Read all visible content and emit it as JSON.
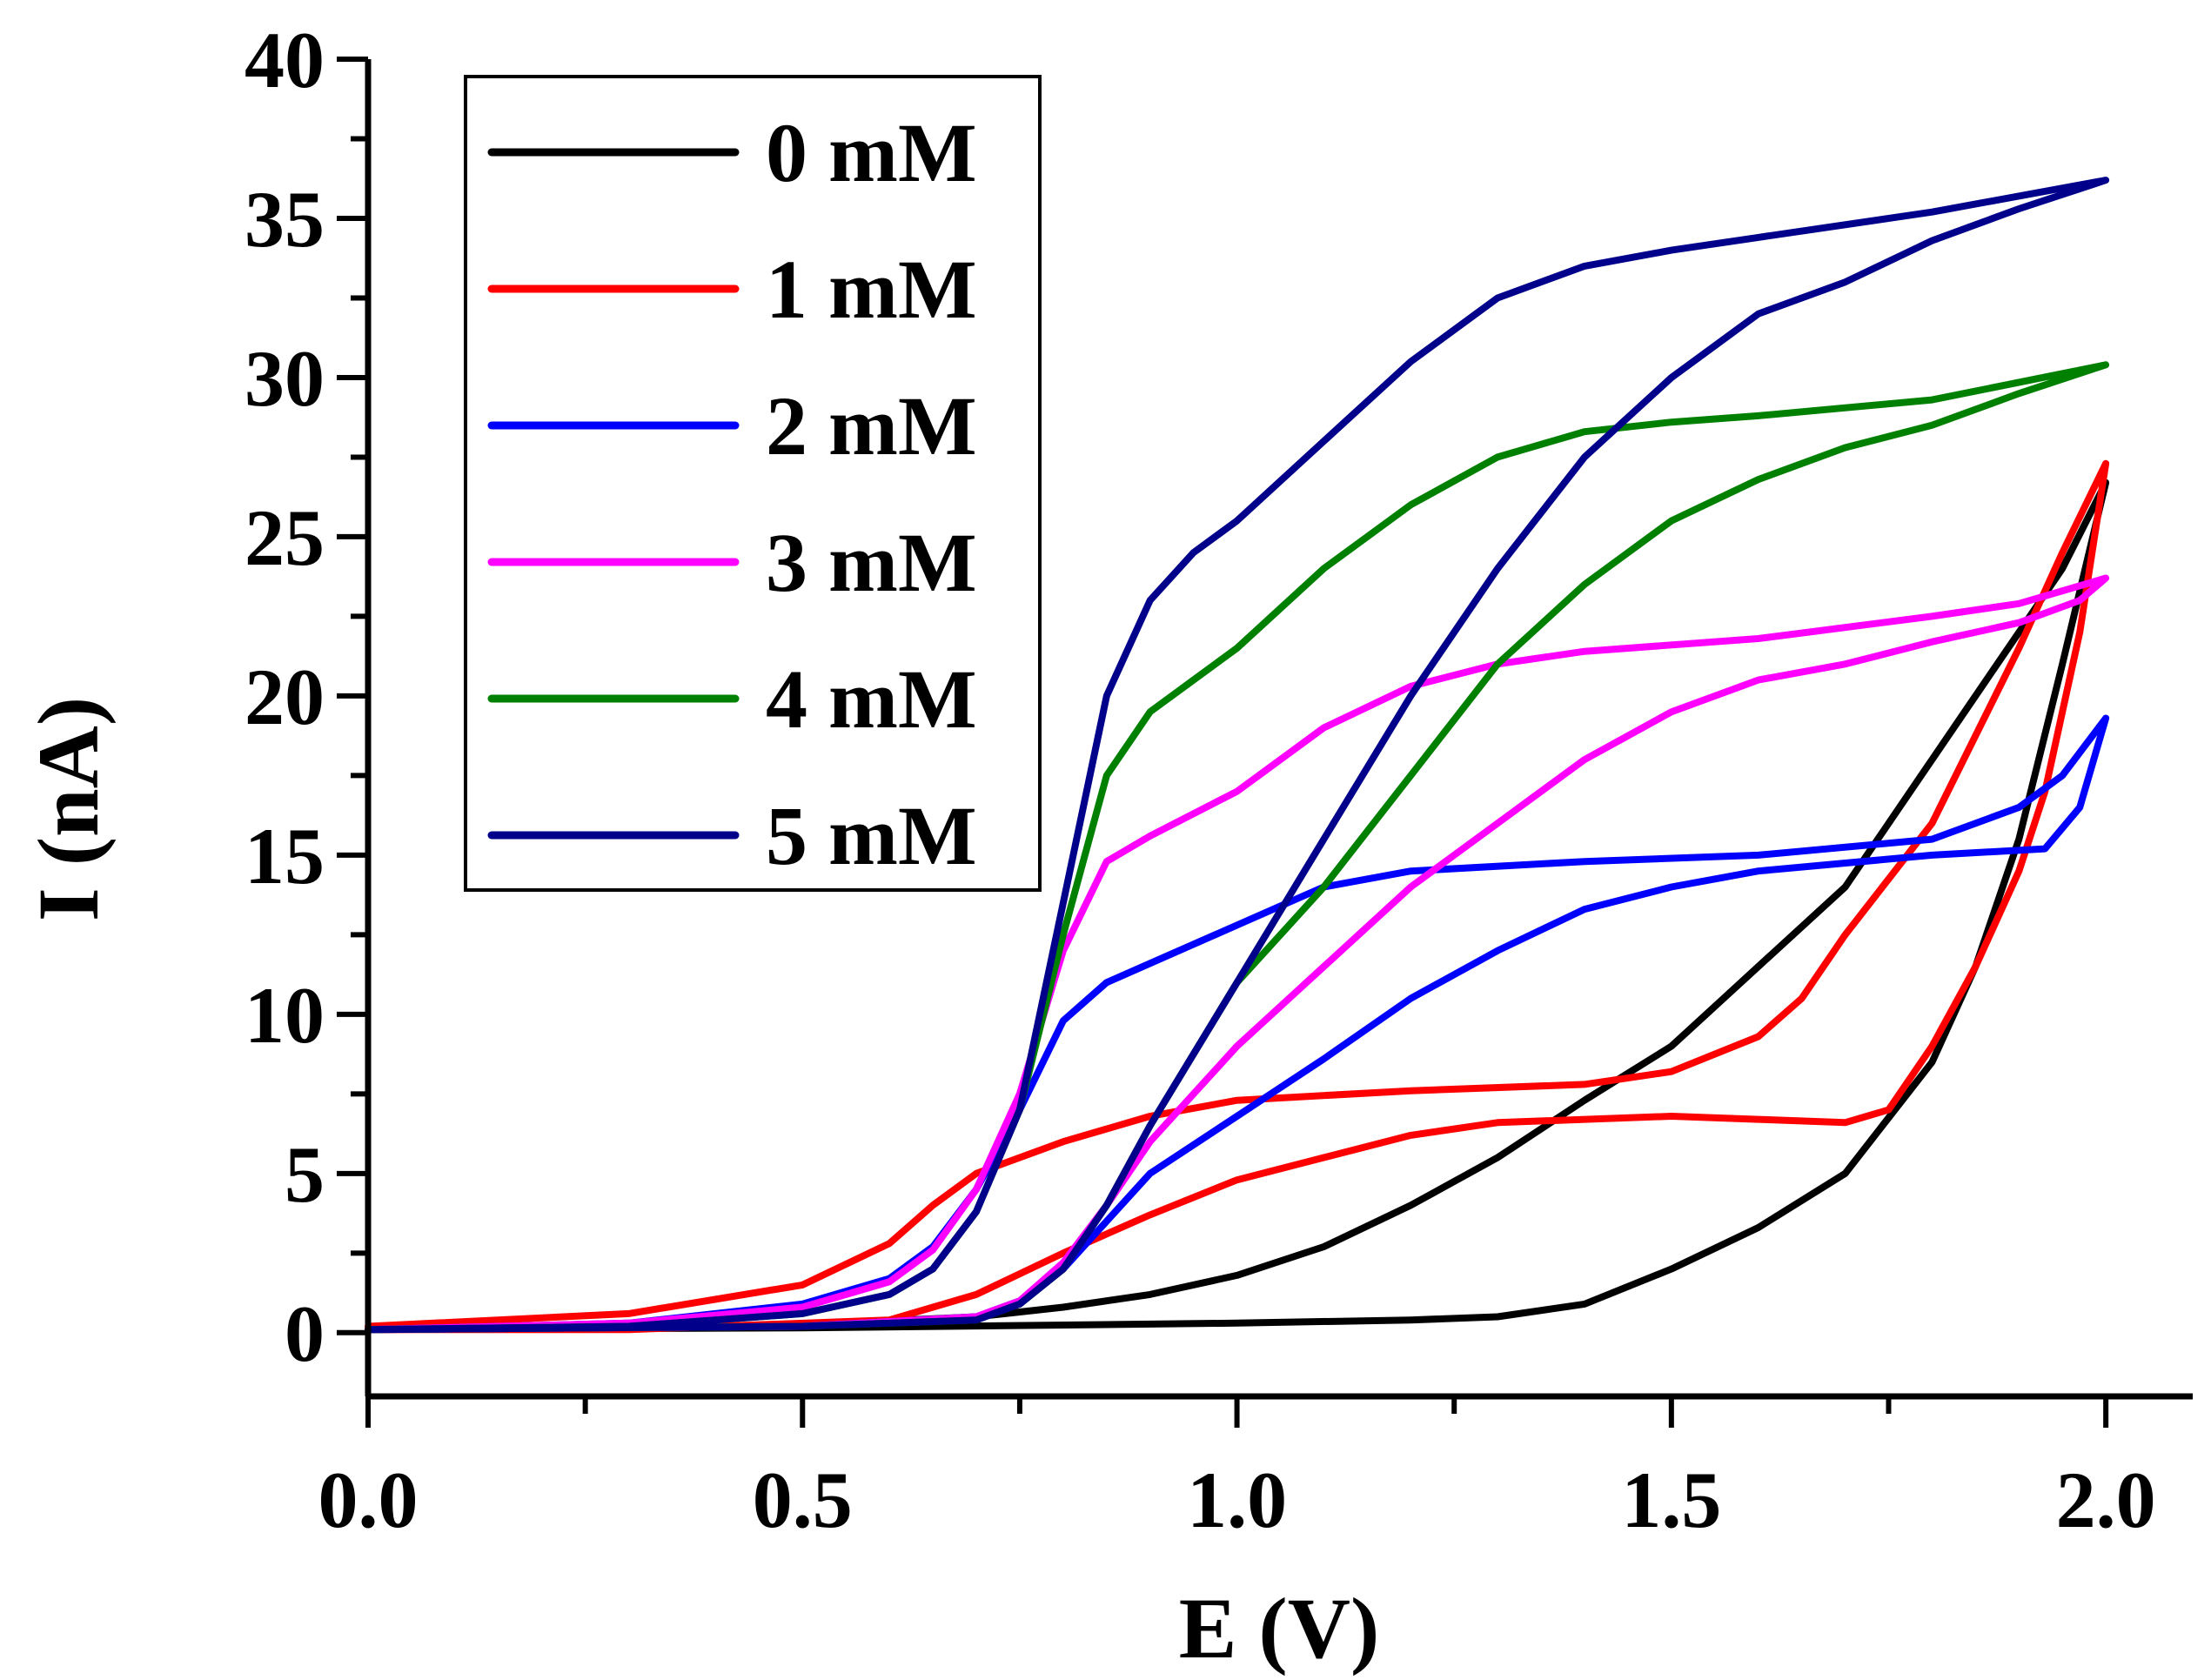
{
  "chart_data": {
    "type": "line",
    "title": "",
    "xlabel": "E (V)",
    "ylabel": "I (nA)",
    "xlim": [
      0.0,
      2.1
    ],
    "ylim": [
      -2,
      40
    ],
    "x_ticks": [
      0.0,
      0.5,
      1.0,
      1.5,
      2.0
    ],
    "x_tick_labels": [
      "0.0",
      "0.5",
      "1.0",
      "1.5",
      "2.0"
    ],
    "y_ticks": [
      0,
      5,
      10,
      15,
      20,
      25,
      30,
      35,
      40
    ],
    "y_tick_labels": [
      "0",
      "5",
      "10",
      "15",
      "20",
      "25",
      "30",
      "35",
      "40"
    ],
    "legend_position": "top-left",
    "grid": false,
    "series": [
      {
        "name": "0 mM",
        "color": "#000000",
        "forward": [
          [
            0.0,
            0.1
          ],
          [
            0.5,
            0.15
          ],
          [
            1.0,
            0.3
          ],
          [
            1.2,
            0.4
          ],
          [
            1.3,
            0.5
          ],
          [
            1.4,
            0.9
          ],
          [
            1.5,
            2.0
          ],
          [
            1.6,
            3.3
          ],
          [
            1.7,
            5.0
          ],
          [
            1.8,
            8.5
          ],
          [
            1.85,
            11.5
          ],
          [
            1.9,
            15.5
          ],
          [
            1.95,
            21.0
          ],
          [
            2.0,
            26.7
          ]
        ],
        "reverse": [
          [
            2.0,
            26.7
          ],
          [
            1.95,
            24.0
          ],
          [
            1.9,
            22.0
          ],
          [
            1.8,
            18.0
          ],
          [
            1.7,
            14.0
          ],
          [
            1.6,
            11.5
          ],
          [
            1.5,
            9.0
          ],
          [
            1.4,
            7.3
          ],
          [
            1.3,
            5.5
          ],
          [
            1.2,
            4.0
          ],
          [
            1.1,
            2.7
          ],
          [
            1.0,
            1.8
          ],
          [
            0.9,
            1.2
          ],
          [
            0.8,
            0.8
          ],
          [
            0.7,
            0.5
          ],
          [
            0.5,
            0.25
          ],
          [
            0.3,
            0.15
          ],
          [
            0.0,
            0.1
          ]
        ]
      },
      {
        "name": "1 mM",
        "color": "#ff0000",
        "forward": [
          [
            0.0,
            0.2
          ],
          [
            0.3,
            0.6
          ],
          [
            0.5,
            1.5
          ],
          [
            0.6,
            2.8
          ],
          [
            0.65,
            4.0
          ],
          [
            0.7,
            5.0
          ],
          [
            0.8,
            6.0
          ],
          [
            0.9,
            6.8
          ],
          [
            1.0,
            7.3
          ],
          [
            1.2,
            7.6
          ],
          [
            1.4,
            7.8
          ],
          [
            1.5,
            8.2
          ],
          [
            1.6,
            9.3
          ],
          [
            1.65,
            10.5
          ],
          [
            1.7,
            12.5
          ],
          [
            1.8,
            16.0
          ],
          [
            1.9,
            21.5
          ],
          [
            1.95,
            24.5
          ],
          [
            2.0,
            27.3
          ]
        ],
        "reverse": [
          [
            2.0,
            27.3
          ],
          [
            1.97,
            22.0
          ],
          [
            1.93,
            17.0
          ],
          [
            1.9,
            14.5
          ],
          [
            1.85,
            11.5
          ],
          [
            1.8,
            9.0
          ],
          [
            1.75,
            7.0
          ],
          [
            1.7,
            6.6
          ],
          [
            1.6,
            6.7
          ],
          [
            1.5,
            6.8
          ],
          [
            1.3,
            6.6
          ],
          [
            1.2,
            6.2
          ],
          [
            1.1,
            5.5
          ],
          [
            1.0,
            4.8
          ],
          [
            0.9,
            3.7
          ],
          [
            0.8,
            2.5
          ],
          [
            0.7,
            1.2
          ],
          [
            0.6,
            0.4
          ],
          [
            0.3,
            0.1
          ],
          [
            0.0,
            0.1
          ]
        ]
      },
      {
        "name": "2 mM",
        "color": "#0000ff",
        "forward": [
          [
            0.0,
            0.1
          ],
          [
            0.3,
            0.3
          ],
          [
            0.5,
            0.9
          ],
          [
            0.6,
            1.7
          ],
          [
            0.65,
            2.7
          ],
          [
            0.7,
            4.5
          ],
          [
            0.75,
            7.0
          ],
          [
            0.8,
            9.8
          ],
          [
            0.85,
            11.0
          ],
          [
            0.9,
            11.6
          ],
          [
            1.0,
            12.8
          ],
          [
            1.1,
            14.0
          ],
          [
            1.2,
            14.5
          ],
          [
            1.4,
            14.8
          ],
          [
            1.6,
            15.0
          ],
          [
            1.8,
            15.5
          ],
          [
            1.9,
            16.5
          ],
          [
            1.95,
            17.5
          ],
          [
            2.0,
            19.3
          ]
        ],
        "reverse": [
          [
            2.0,
            19.3
          ],
          [
            1.97,
            16.5
          ],
          [
            1.93,
            15.2
          ],
          [
            1.8,
            15.0
          ],
          [
            1.6,
            14.5
          ],
          [
            1.5,
            14.0
          ],
          [
            1.4,
            13.3
          ],
          [
            1.3,
            12.0
          ],
          [
            1.2,
            10.5
          ],
          [
            1.1,
            8.6
          ],
          [
            1.0,
            6.8
          ],
          [
            0.9,
            5.0
          ],
          [
            0.85,
            3.5
          ],
          [
            0.8,
            2.0
          ],
          [
            0.75,
            1.0
          ],
          [
            0.7,
            0.5
          ],
          [
            0.5,
            0.2
          ],
          [
            0.0,
            0.1
          ]
        ]
      },
      {
        "name": "3 mM",
        "color": "#ff00ff",
        "forward": [
          [
            0.0,
            0.1
          ],
          [
            0.3,
            0.3
          ],
          [
            0.5,
            0.8
          ],
          [
            0.6,
            1.6
          ],
          [
            0.65,
            2.6
          ],
          [
            0.7,
            4.5
          ],
          [
            0.75,
            7.5
          ],
          [
            0.8,
            12.0
          ],
          [
            0.85,
            14.8
          ],
          [
            0.9,
            15.6
          ],
          [
            0.95,
            16.3
          ],
          [
            1.0,
            17.0
          ],
          [
            1.1,
            19.0
          ],
          [
            1.2,
            20.3
          ],
          [
            1.3,
            21.0
          ],
          [
            1.4,
            21.4
          ],
          [
            1.6,
            21.8
          ],
          [
            1.8,
            22.5
          ],
          [
            1.9,
            22.9
          ],
          [
            2.0,
            23.7
          ]
        ],
        "reverse": [
          [
            2.0,
            23.7
          ],
          [
            1.97,
            23.0
          ],
          [
            1.9,
            22.3
          ],
          [
            1.8,
            21.7
          ],
          [
            1.7,
            21.0
          ],
          [
            1.6,
            20.5
          ],
          [
            1.5,
            19.5
          ],
          [
            1.4,
            18.0
          ],
          [
            1.3,
            16.0
          ],
          [
            1.2,
            14.0
          ],
          [
            1.1,
            11.5
          ],
          [
            1.0,
            9.0
          ],
          [
            0.9,
            6.0
          ],
          [
            0.85,
            4.0
          ],
          [
            0.8,
            2.2
          ],
          [
            0.75,
            1.0
          ],
          [
            0.7,
            0.5
          ],
          [
            0.5,
            0.2
          ],
          [
            0.0,
            0.1
          ]
        ]
      },
      {
        "name": "4 mM",
        "color": "#008000",
        "forward": [
          [
            0.0,
            0.1
          ],
          [
            0.3,
            0.2
          ],
          [
            0.5,
            0.6
          ],
          [
            0.6,
            1.2
          ],
          [
            0.65,
            2.0
          ],
          [
            0.7,
            3.8
          ],
          [
            0.75,
            7.0
          ],
          [
            0.8,
            12.5
          ],
          [
            0.85,
            17.5
          ],
          [
            0.9,
            19.5
          ],
          [
            0.95,
            20.5
          ],
          [
            1.0,
            21.5
          ],
          [
            1.1,
            24.0
          ],
          [
            1.2,
            26.0
          ],
          [
            1.3,
            27.5
          ],
          [
            1.4,
            28.3
          ],
          [
            1.5,
            28.6
          ],
          [
            1.6,
            28.8
          ],
          [
            1.8,
            29.3
          ],
          [
            2.0,
            30.4
          ]
        ],
        "reverse": [
          [
            2.0,
            30.4
          ],
          [
            1.9,
            29.5
          ],
          [
            1.8,
            28.5
          ],
          [
            1.7,
            27.8
          ],
          [
            1.6,
            26.8
          ],
          [
            1.5,
            25.5
          ],
          [
            1.4,
            23.5
          ],
          [
            1.3,
            21.0
          ],
          [
            1.2,
            17.5
          ],
          [
            1.1,
            14.0
          ],
          [
            1.0,
            11.0
          ],
          [
            0.9,
            6.5
          ],
          [
            0.85,
            4.0
          ],
          [
            0.8,
            2.0
          ],
          [
            0.75,
            0.9
          ],
          [
            0.7,
            0.4
          ],
          [
            0.5,
            0.2
          ],
          [
            0.0,
            0.1
          ]
        ]
      },
      {
        "name": "5 mM",
        "color": "#00008b",
        "forward": [
          [
            0.0,
            0.1
          ],
          [
            0.3,
            0.2
          ],
          [
            0.5,
            0.6
          ],
          [
            0.6,
            1.2
          ],
          [
            0.65,
            2.0
          ],
          [
            0.7,
            3.8
          ],
          [
            0.75,
            7.0
          ],
          [
            0.8,
            13.5
          ],
          [
            0.85,
            20.0
          ],
          [
            0.9,
            23.0
          ],
          [
            0.95,
            24.5
          ],
          [
            1.0,
            25.5
          ],
          [
            1.1,
            28.0
          ],
          [
            1.2,
            30.5
          ],
          [
            1.3,
            32.5
          ],
          [
            1.4,
            33.5
          ],
          [
            1.5,
            34.0
          ],
          [
            1.6,
            34.4
          ],
          [
            1.8,
            35.2
          ],
          [
            2.0,
            36.2
          ]
        ],
        "reverse": [
          [
            2.0,
            36.2
          ],
          [
            1.9,
            35.3
          ],
          [
            1.8,
            34.3
          ],
          [
            1.7,
            33.0
          ],
          [
            1.6,
            32.0
          ],
          [
            1.5,
            30.0
          ],
          [
            1.4,
            27.5
          ],
          [
            1.3,
            24.0
          ],
          [
            1.2,
            20.0
          ],
          [
            1.1,
            15.5
          ],
          [
            1.0,
            11.0
          ],
          [
            0.9,
            6.5
          ],
          [
            0.85,
            4.0
          ],
          [
            0.8,
            2.0
          ],
          [
            0.75,
            0.9
          ],
          [
            0.7,
            0.4
          ],
          [
            0.5,
            0.2
          ],
          [
            0.0,
            0.1
          ]
        ]
      }
    ]
  }
}
